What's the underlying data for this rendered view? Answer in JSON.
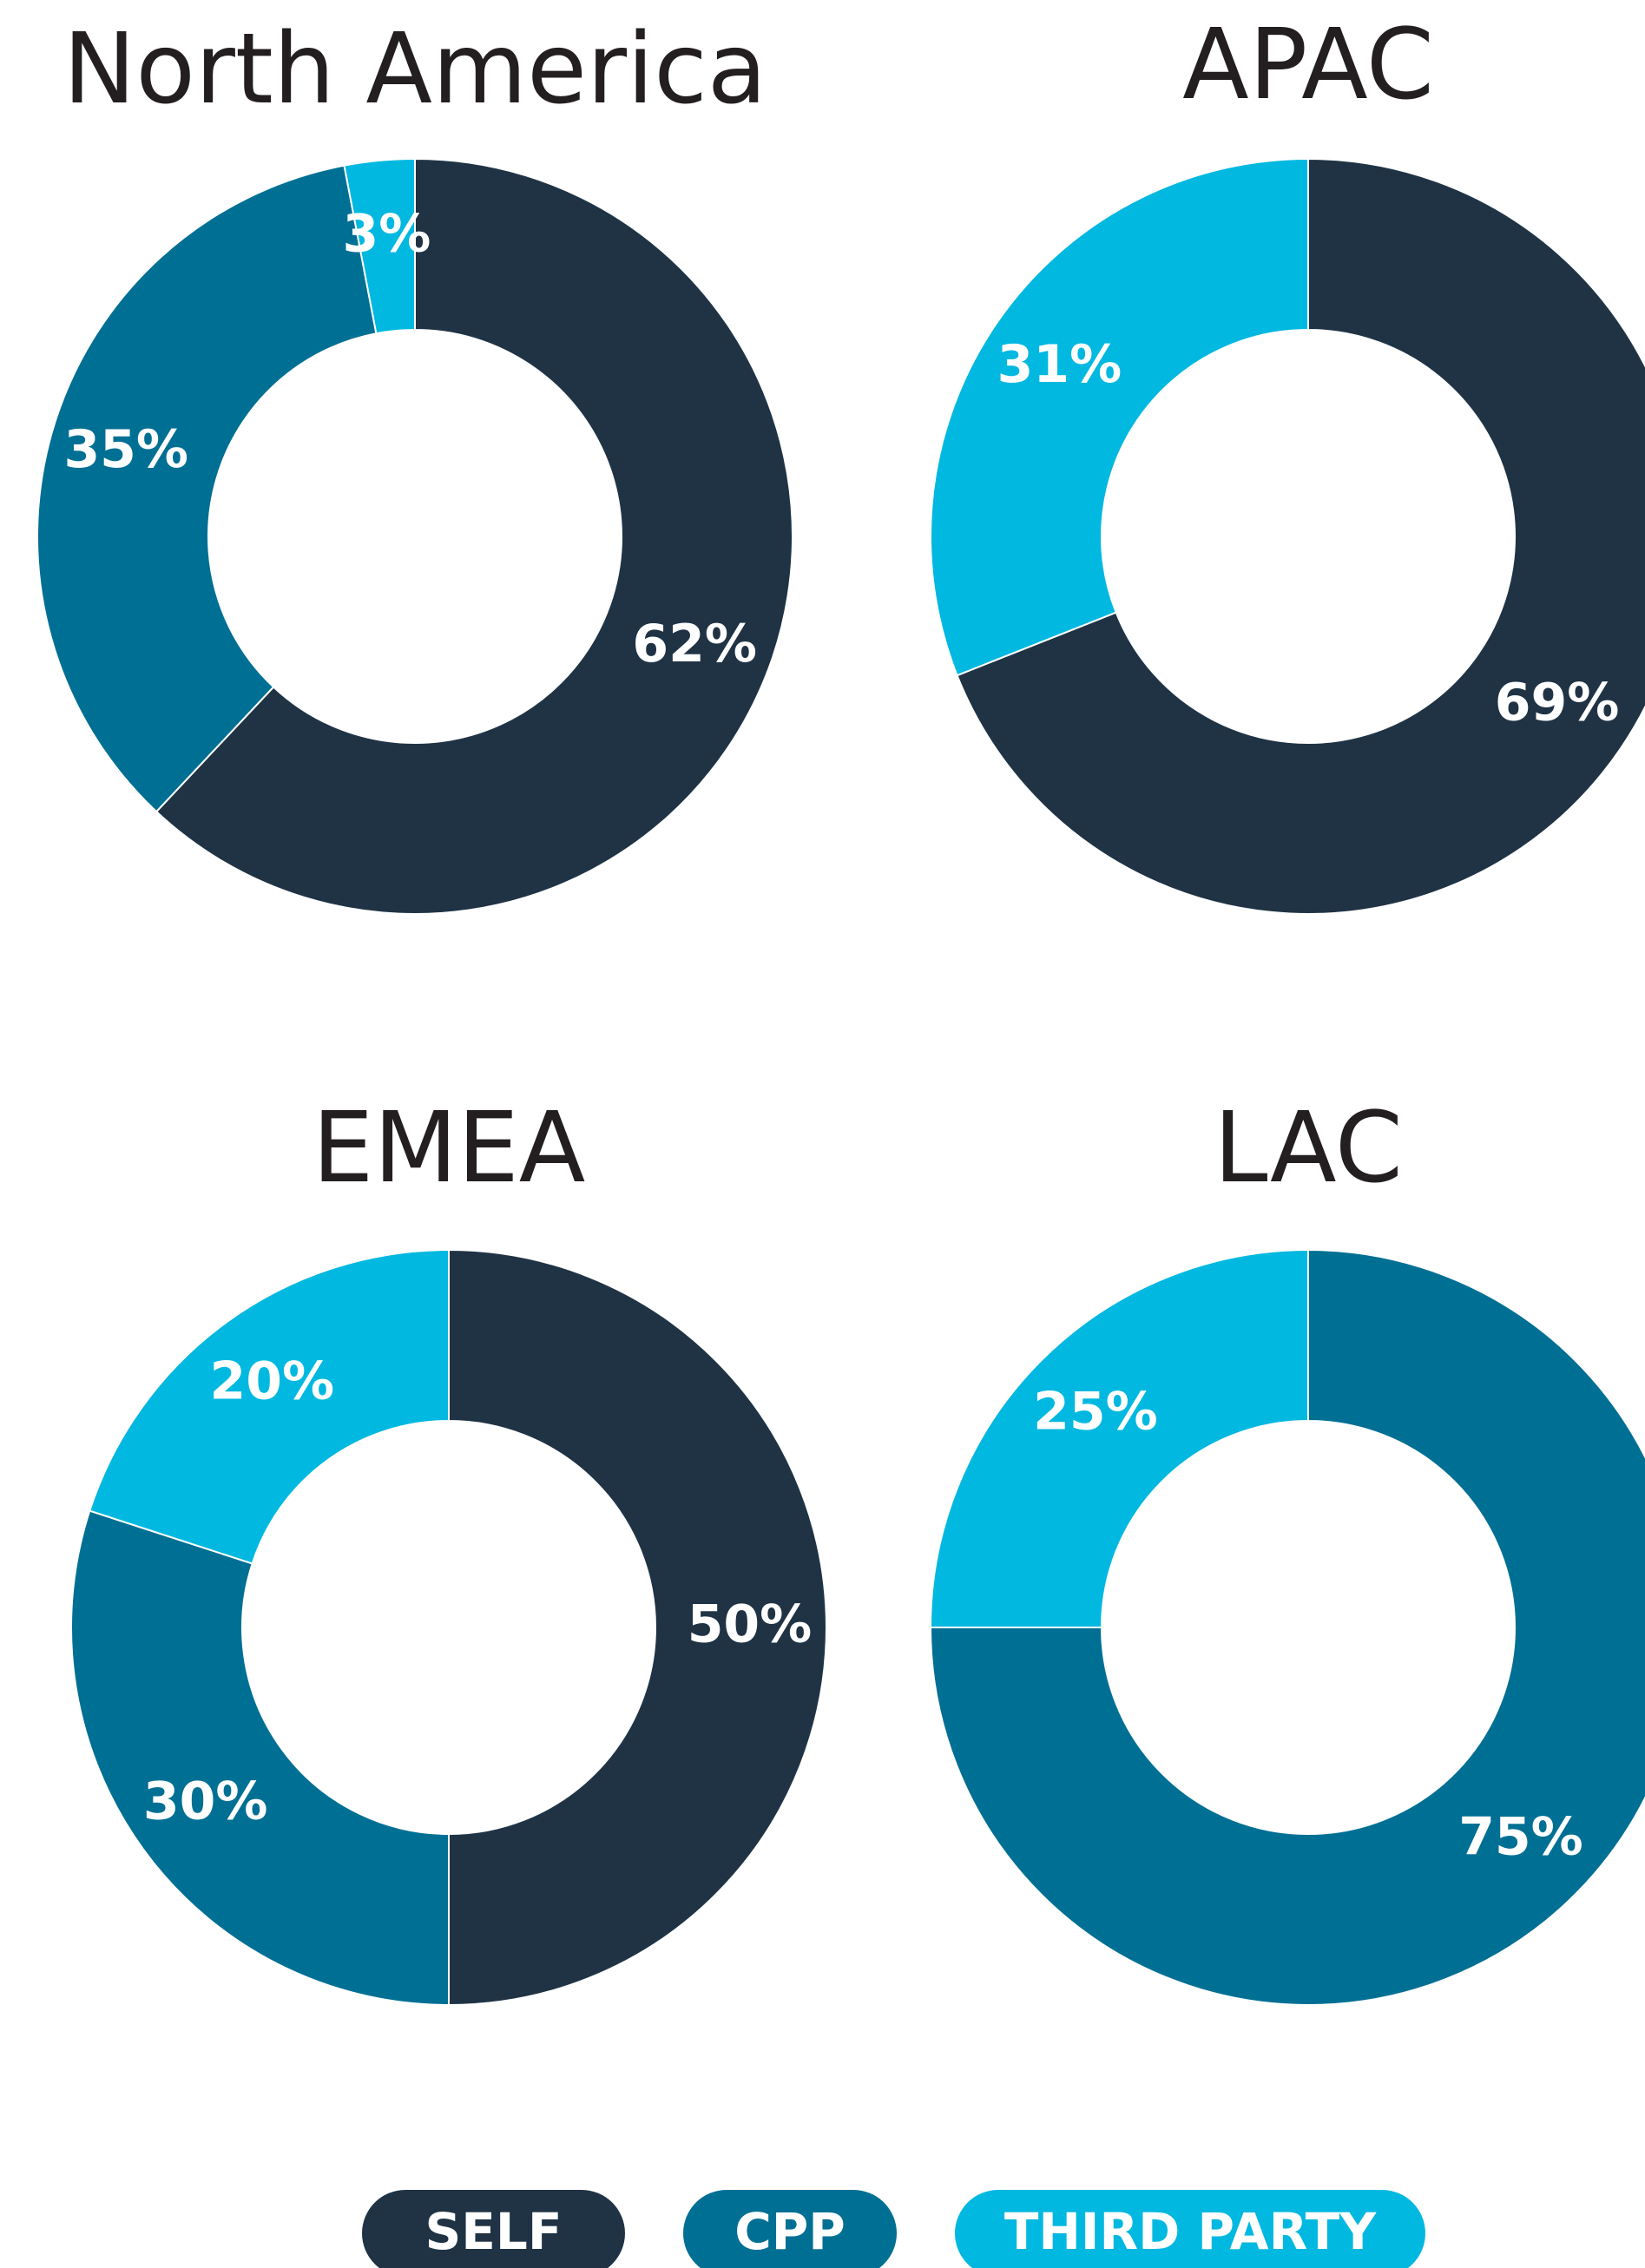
{
  "chart_data": [
    {
      "type": "pie",
      "donut": true,
      "title": "North America",
      "values": [
        62,
        35,
        3
      ],
      "value_labels": [
        "62%",
        "35%",
        "3%"
      ],
      "colors": [
        "#1f3344",
        "#006f94",
        "#00b8e0"
      ]
    },
    {
      "type": "pie",
      "donut": true,
      "title": "APAC",
      "values": [
        69,
        31
      ],
      "value_labels": [
        "69%",
        "31%"
      ],
      "colors": [
        "#1f3344",
        "#00b8e0"
      ]
    },
    {
      "type": "pie",
      "donut": true,
      "title": "EMEA",
      "values": [
        50,
        30,
        20
      ],
      "value_labels": [
        "50%",
        "30%",
        "20%"
      ],
      "colors": [
        "#1f3344",
        "#006f94",
        "#00b8e0"
      ]
    },
    {
      "type": "pie",
      "donut": true,
      "title": "LAC",
      "values": [
        75,
        25
      ],
      "value_labels": [
        "75%",
        "25%"
      ],
      "colors": [
        "#006f94",
        "#00b8e0"
      ]
    }
  ],
  "legend": {
    "items": [
      {
        "name": "SELF",
        "color": "#1f3344"
      },
      {
        "name": "CPP",
        "color": "#006f94"
      },
      {
        "name": "THIRD PARTY",
        "color": "#00b8e0"
      }
    ]
  }
}
